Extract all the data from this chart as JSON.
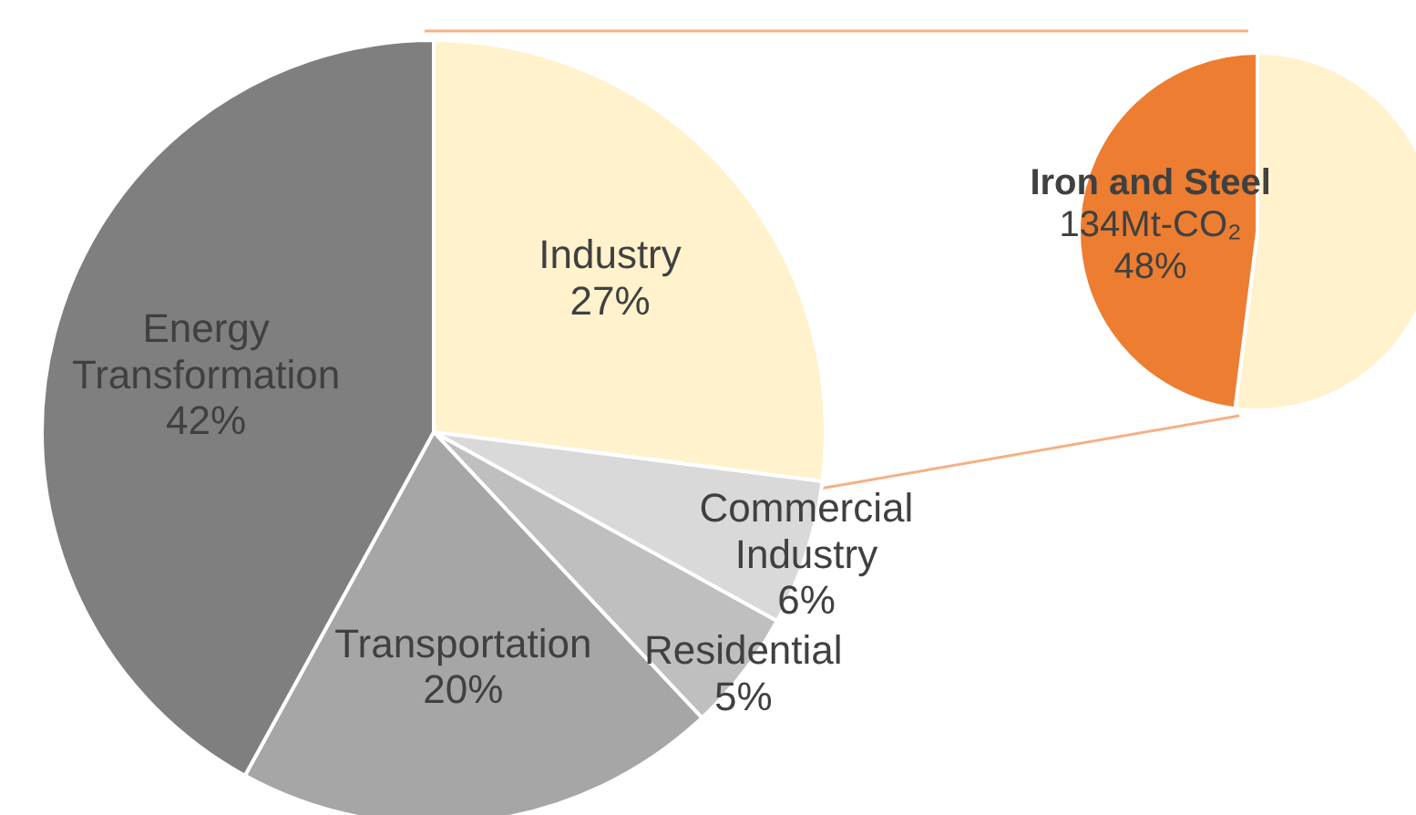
{
  "chart_data": [
    {
      "type": "pie",
      "categories": [
        "Industry",
        "Commercial Industry",
        "Residential",
        "Transportation",
        "Energy Transformation"
      ],
      "values": [
        27,
        6,
        5,
        20,
        42
      ],
      "value_labels": [
        "27%",
        "6%",
        "5%",
        "20%",
        "42%"
      ],
      "colors": [
        "#fff2cc",
        "#d9d9d9",
        "#bfbfbf",
        "#a6a6a6",
        "#7f7f7f"
      ]
    },
    {
      "type": "pie",
      "categories": [
        null,
        "Iron and Steel"
      ],
      "values": [
        52,
        48
      ],
      "value_labels": [
        null,
        "48%"
      ],
      "colors": [
        "#fff2cc",
        "#ed7d31"
      ],
      "annotations": [
        "134Mt-CO₂"
      ]
    }
  ]
}
